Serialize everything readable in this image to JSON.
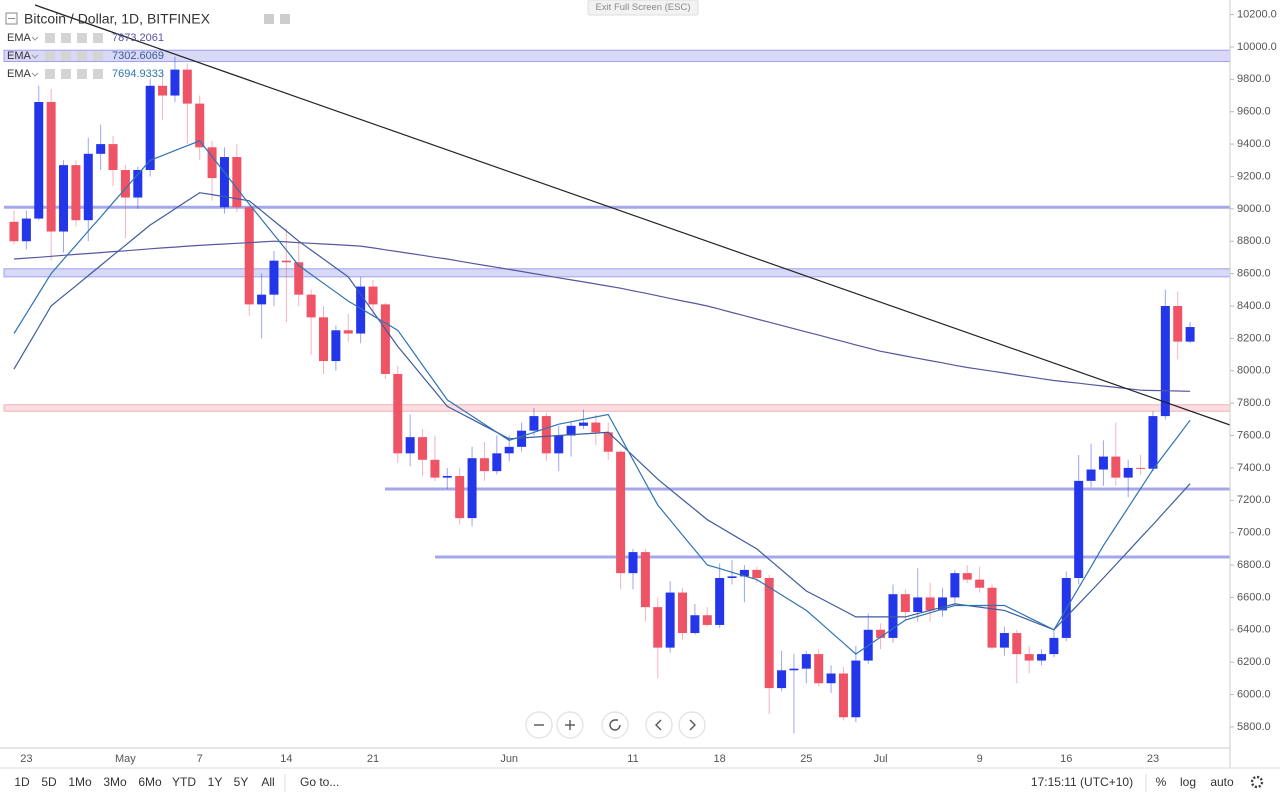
{
  "header": {
    "title": "Bitcoin / Dollar, 1D, BITFINEX",
    "exit": "Exit Full Screen (ESC)"
  },
  "chart_data": {
    "type": "candlestick",
    "categories": [
      null,
      "23",
      null,
      null,
      null,
      null,
      null,
      null,
      null,
      "May",
      null,
      null,
      null,
      null,
      null,
      "7",
      null,
      null,
      null,
      null,
      null,
      null,
      "14",
      null,
      null,
      null,
      null,
      null,
      null,
      "21",
      null,
      null,
      null,
      null,
      null,
      null,
      null,
      null,
      null,
      null,
      "Jun",
      null,
      null,
      null,
      null,
      null,
      null,
      null,
      null,
      null,
      "11",
      null,
      null,
      null,
      null,
      null,
      null,
      "18",
      null,
      null,
      null,
      null,
      null,
      null,
      "25",
      null,
      null,
      null,
      null,
      null,
      "Jul",
      null,
      null,
      null,
      null,
      null,
      null,
      null,
      "9",
      null,
      null,
      null,
      null,
      null,
      null,
      "16",
      null,
      null,
      null,
      null,
      null,
      null,
      "23",
      null,
      null,
      null
    ],
    "open": [
      8920,
      8800,
      8940,
      9660,
      8860,
      9270,
      8930,
      9340,
      9400,
      9240,
      9070,
      9240,
      9760,
      9700,
      9860,
      9650,
      9380,
      9010,
      9320,
      9010,
      8410,
      8470,
      8680,
      8670,
      8470,
      8330,
      8060,
      8250,
      8230,
      8520,
      8410,
      7980,
      7490,
      7590,
      7450,
      7340,
      7350,
      7090,
      7460,
      7380,
      7490,
      7530,
      7630,
      7720,
      7490,
      7600,
      7660,
      7680,
      7620,
      7500,
      6750,
      6880,
      6540,
      6290,
      6630,
      6380,
      6490,
      6430,
      6720,
      6730,
      6770,
      6720,
      6040,
      6150,
      6160,
      6250,
      6070,
      6130,
      5860,
      6210,
      6400,
      6350,
      6620,
      6510,
      6600,
      6520,
      6600,
      6750,
      6710,
      6660,
      6290,
      6380,
      6250,
      6210,
      6250,
      6350,
      6720,
      7320,
      7390,
      7470,
      7340,
      7400,
      7395,
      7720,
      8400,
      8180
    ],
    "high": [
      8990,
      8990,
      9760,
      9740,
      9300,
      9300,
      9440,
      9520,
      9450,
      9270,
      9260,
      9800,
      9850,
      9940,
      9900,
      9700,
      9420,
      9380,
      9400,
      9020,
      8600,
      8740,
      8880,
      8800,
      8500,
      8400,
      8280,
      8350,
      8580,
      8560,
      8420,
      8030,
      7730,
      7640,
      7600,
      7400,
      7400,
      7530,
      7560,
      7600,
      7600,
      7680,
      7770,
      7740,
      7660,
      7680,
      7760,
      7730,
      7680,
      7510,
      6900,
      6900,
      6600,
      6700,
      6660,
      6560,
      6540,
      6810,
      6830,
      6800,
      6790,
      6740,
      6270,
      6250,
      6270,
      6280,
      6180,
      6170,
      6300,
      6500,
      6440,
      6680,
      6650,
      6780,
      6690,
      6660,
      6770,
      6800,
      6790,
      6680,
      6420,
      6400,
      6300,
      6280,
      6400,
      6760,
      7480,
      7550,
      7570,
      7680,
      7450,
      7480,
      7750,
      8500,
      8490,
      8300
    ],
    "low": [
      8780,
      8750,
      8930,
      8680,
      8730,
      8890,
      8800,
      9240,
      9140,
      8820,
      9000,
      9200,
      9550,
      9660,
      9400,
      9300,
      9050,
      8970,
      8980,
      8340,
      8200,
      8400,
      8300,
      8400,
      8100,
      7980,
      8000,
      8180,
      8170,
      8330,
      7950,
      7430,
      7410,
      7350,
      7320,
      7270,
      7050,
      7040,
      7320,
      7360,
      7440,
      7500,
      7600,
      7440,
      7380,
      7470,
      7640,
      7540,
      7450,
      6650,
      6650,
      6450,
      6100,
      6260,
      6340,
      6370,
      6420,
      6410,
      6680,
      6570,
      6690,
      5880,
      6020,
      5760,
      6070,
      6050,
      6010,
      5840,
      5830,
      6190,
      6280,
      6320,
      6460,
      6450,
      6450,
      6480,
      6560,
      6690,
      6630,
      6280,
      6240,
      6070,
      6130,
      6180,
      6230,
      6330,
      6680,
      7280,
      7290,
      7290,
      7220,
      7360,
      7380,
      7700,
      8070,
      8170
    ],
    "close": [
      8800,
      8940,
      9660,
      8860,
      9270,
      8930,
      9340,
      9400,
      9240,
      9070,
      9240,
      9760,
      9700,
      9860,
      9650,
      9380,
      9190,
      9320,
      9010,
      8410,
      8470,
      8680,
      8670,
      8470,
      8330,
      8060,
      8250,
      8230,
      8520,
      8410,
      7980,
      7490,
      7590,
      7450,
      7340,
      7350,
      7090,
      7460,
      7380,
      7490,
      7530,
      7630,
      7720,
      7490,
      7600,
      7660,
      7680,
      7620,
      7500,
      6750,
      6880,
      6540,
      6290,
      6630,
      6380,
      6490,
      6430,
      6720,
      6730,
      6770,
      6720,
      6040,
      6150,
      6160,
      6250,
      6070,
      6130,
      5860,
      6210,
      6400,
      6350,
      6620,
      6510,
      6600,
      6520,
      6600,
      6750,
      6710,
      6660,
      6290,
      6380,
      6250,
      6210,
      6250,
      6350,
      6720,
      7320,
      7390,
      7470,
      7340,
      7400,
      7395,
      7720,
      8400,
      8180,
      8270
    ],
    "up_color": "#2436e9",
    "down_color": "#ef5366",
    "series": [
      {
        "name": "EMA",
        "color": "#56579e",
        "values": [
          8690,
          8696,
          8701,
          8707,
          8713,
          8719,
          8724,
          8730,
          8736,
          8741,
          8747,
          8753,
          8759,
          8764,
          8770,
          8774,
          8779,
          8783,
          8787,
          8791,
          8796,
          8800,
          8796,
          8791,
          8787,
          8783,
          8779,
          8774,
          8770,
          8759,
          8747,
          8736,
          8724,
          8713,
          8701,
          8690,
          8677,
          8664,
          8651,
          8639,
          8626,
          8613,
          8600,
          8587,
          8574,
          8561,
          8549,
          8536,
          8523,
          8510,
          8494,
          8479,
          8463,
          8447,
          8431,
          8416,
          8400,
          8380,
          8360,
          8340,
          8320,
          8300,
          8280,
          8260,
          8240,
          8220,
          8200,
          8180,
          8160,
          8140,
          8120,
          8106,
          8091,
          8077,
          8063,
          8049,
          8034,
          8020,
          8009,
          7997,
          7986,
          7974,
          7963,
          7951,
          7940,
          7931,
          7923,
          7914,
          7906,
          7897,
          7889,
          7880,
          7878,
          7877,
          7875,
          7873.2061
        ]
      },
      {
        "name": "EMA",
        "color": "#3d5c9c",
        "values": [
          8010,
          8140,
          8270,
          8400,
          8463,
          8525,
          8588,
          8650,
          8713,
          8775,
          8838,
          8900,
          8950,
          9000,
          9050,
          9100,
          9088,
          9075,
          9063,
          9050,
          8988,
          8925,
          8863,
          8800,
          8745,
          8690,
          8635,
          8580,
          8473,
          8365,
          8258,
          8150,
          8058,
          7965,
          7873,
          7780,
          7740,
          7700,
          7660,
          7620,
          7580,
          7585,
          7590,
          7595,
          7600,
          7605,
          7610,
          7615,
          7620,
          7548,
          7475,
          7403,
          7330,
          7268,
          7205,
          7143,
          7080,
          7035,
          6990,
          6945,
          6900,
          6835,
          6770,
          6705,
          6640,
          6600,
          6560,
          6520,
          6480,
          6480,
          6480,
          6480,
          6480,
          6500,
          6520,
          6540,
          6560,
          6550,
          6540,
          6530,
          6520,
          6490,
          6460,
          6430,
          6400,
          6480,
          6560,
          6640,
          6720,
          6803,
          6885,
          6968,
          7050,
          7134,
          7218,
          7302.6069
        ]
      },
      {
        "name": "EMA",
        "color": "#2f74b3",
        "values": [
          8230,
          8353,
          8477,
          8600,
          8688,
          8775,
          8863,
          8950,
          9038,
          9125,
          9213,
          9300,
          9330,
          9360,
          9390,
          9420,
          9323,
          9225,
          9128,
          9030,
          8935,
          8840,
          8745,
          8650,
          8595,
          8540,
          8485,
          8430,
          8385,
          8340,
          8295,
          8250,
          8143,
          8035,
          7928,
          7820,
          7770,
          7720,
          7670,
          7620,
          7570,
          7595,
          7620,
          7645,
          7670,
          7685,
          7700,
          7715,
          7730,
          7590,
          7450,
          7310,
          7170,
          7078,
          6985,
          6893,
          6800,
          6778,
          6755,
          6733,
          6710,
          6663,
          6615,
          6568,
          6520,
          6453,
          6385,
          6318,
          6250,
          6303,
          6355,
          6408,
          6460,
          6483,
          6505,
          6528,
          6550,
          6550,
          6550,
          6550,
          6550,
          6513,
          6475,
          6438,
          6400,
          6530,
          6660,
          6790,
          6920,
          7038,
          7155,
          7273,
          7390,
          7492,
          7593,
          7694.9333
        ]
      }
    ],
    "bands": [
      {
        "range": [
          9910,
          9980
        ],
        "color": "#8f8fe8"
      },
      {
        "range": [
          8580,
          8630
        ],
        "color": "#8f8fe8"
      },
      {
        "range": [
          7750,
          7790
        ],
        "color": "#f0a0aa"
      }
    ],
    "levels": [
      9010,
      7270,
      6850
    ],
    "level_color": "#8f91e6",
    "ylim": [
      5670,
      10290
    ],
    "yticks": [
      {
        "value": 5800,
        "label": "5800.0"
      },
      {
        "value": 6000,
        "label": "6000.0"
      },
      {
        "value": 6200,
        "label": "6200.0"
      },
      {
        "value": 6400,
        "label": "6400.0"
      },
      {
        "value": 6600,
        "label": "6600.0"
      },
      {
        "value": 6800,
        "label": "6800.0"
      },
      {
        "value": 7000,
        "label": "7000.0"
      },
      {
        "value": 7200,
        "label": "7200.0"
      },
      {
        "value": 7400,
        "label": "7400.0"
      },
      {
        "value": 7600,
        "label": "7600.0"
      },
      {
        "value": 7800,
        "label": "7800.0"
      },
      {
        "value": 8000,
        "label": "8000.0"
      },
      {
        "value": 8200,
        "label": "8200.0"
      },
      {
        "value": 8400,
        "label": "8400.0"
      },
      {
        "value": 8600,
        "label": "8600.0"
      },
      {
        "value": 8800,
        "label": "8800.0"
      },
      {
        "value": 9000,
        "label": "9000.0"
      },
      {
        "value": 9200,
        "label": "9200.0"
      },
      {
        "value": 9400,
        "label": "9400.0"
      },
      {
        "value": 9600,
        "label": "9600.0"
      },
      {
        "value": 9800,
        "label": "9800.0"
      },
      {
        "value": 10000,
        "label": "10000.0"
      },
      {
        "value": 10200,
        "label": "10200.0"
      }
    ]
  },
  "toolbar": {
    "ranges": [
      "1D",
      "5D",
      "1Mo",
      "3Mo",
      "6Mo",
      "YTD",
      "1Y",
      "5Y",
      "All"
    ],
    "goto": "Go to...",
    "clock": "17:15:11 (UTC+10)",
    "percent": "%",
    "log": "log",
    "auto": "auto"
  }
}
